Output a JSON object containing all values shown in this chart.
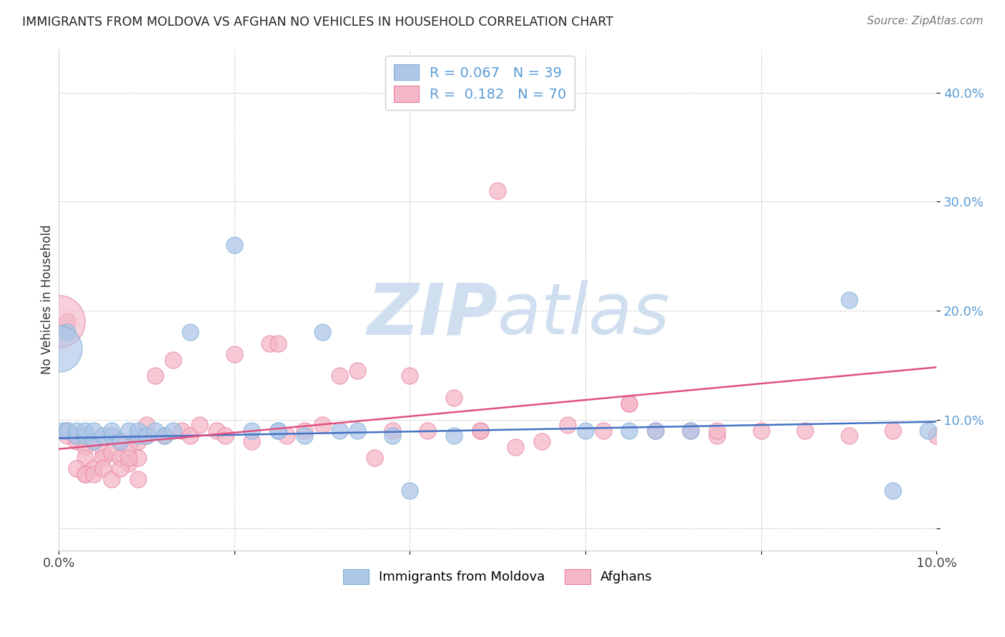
{
  "title": "IMMIGRANTS FROM MOLDOVA VS AFGHAN NO VEHICLES IN HOUSEHOLD CORRELATION CHART",
  "source": "Source: ZipAtlas.com",
  "ylabel": "No Vehicles in Household",
  "xlim": [
    0.0,
    0.1
  ],
  "ylim": [
    -0.02,
    0.44
  ],
  "yticks": [
    0.0,
    0.1,
    0.2,
    0.3,
    0.4
  ],
  "xticks": [
    0.0,
    0.02,
    0.04,
    0.06,
    0.08,
    0.1
  ],
  "ytick_labels": [
    "",
    "10.0%",
    "20.0%",
    "30.0%",
    "40.0%"
  ],
  "xtick_labels": [
    "0.0%",
    "",
    "",
    "",
    "",
    "10.0%"
  ],
  "blue_R": 0.067,
  "blue_N": 39,
  "pink_R": 0.182,
  "pink_N": 70,
  "blue_color": "#aec6e8",
  "pink_color": "#f4b8c8",
  "blue_edge_color": "#7aafd4",
  "pink_edge_color": "#e87fa0",
  "blue_line_color": "#4472c4",
  "pink_line_color": "#e05080",
  "tick_color": "#5b9bd5",
  "watermark_color": "#d0dff0",
  "grid_color": "#d0d0d0",
  "blue_scatter_x": [
    0.0005,
    0.001,
    0.001,
    0.002,
    0.002,
    0.003,
    0.003,
    0.004,
    0.004,
    0.005,
    0.006,
    0.006,
    0.007,
    0.008,
    0.009,
    0.009,
    0.01,
    0.011,
    0.012,
    0.013,
    0.015,
    0.02,
    0.022,
    0.025,
    0.028,
    0.03,
    0.032,
    0.034,
    0.038,
    0.04,
    0.045,
    0.06,
    0.065,
    0.068,
    0.072,
    0.09,
    0.095,
    0.099,
    0.025
  ],
  "blue_scatter_y": [
    0.09,
    0.18,
    0.09,
    0.085,
    0.09,
    0.085,
    0.09,
    0.08,
    0.09,
    0.085,
    0.085,
    0.09,
    0.08,
    0.09,
    0.085,
    0.09,
    0.085,
    0.09,
    0.085,
    0.09,
    0.18,
    0.26,
    0.09,
    0.09,
    0.085,
    0.18,
    0.09,
    0.09,
    0.085,
    0.035,
    0.085,
    0.09,
    0.09,
    0.09,
    0.09,
    0.21,
    0.035,
    0.09,
    0.09
  ],
  "blue_scatter_large_x": [
    0.0
  ],
  "blue_scatter_large_y": [
    0.165
  ],
  "pink_scatter_x": [
    0.001,
    0.001,
    0.002,
    0.002,
    0.003,
    0.003,
    0.003,
    0.004,
    0.004,
    0.005,
    0.005,
    0.006,
    0.006,
    0.007,
    0.007,
    0.008,
    0.008,
    0.009,
    0.009,
    0.01,
    0.01,
    0.011,
    0.012,
    0.013,
    0.014,
    0.015,
    0.016,
    0.018,
    0.019,
    0.02,
    0.022,
    0.024,
    0.025,
    0.026,
    0.028,
    0.03,
    0.032,
    0.034,
    0.036,
    0.038,
    0.04,
    0.042,
    0.045,
    0.048,
    0.05,
    0.052,
    0.055,
    0.058,
    0.062,
    0.065,
    0.068,
    0.072,
    0.075,
    0.08,
    0.085,
    0.09,
    0.095,
    0.1,
    0.001,
    0.002,
    0.003,
    0.004,
    0.005,
    0.006,
    0.007,
    0.008,
    0.009,
    0.048,
    0.065,
    0.075
  ],
  "pink_scatter_y": [
    0.09,
    0.085,
    0.08,
    0.085,
    0.075,
    0.065,
    0.05,
    0.055,
    0.08,
    0.07,
    0.065,
    0.07,
    0.085,
    0.08,
    0.065,
    0.075,
    0.06,
    0.065,
    0.08,
    0.085,
    0.095,
    0.14,
    0.085,
    0.155,
    0.09,
    0.085,
    0.095,
    0.09,
    0.085,
    0.16,
    0.08,
    0.17,
    0.17,
    0.085,
    0.09,
    0.095,
    0.14,
    0.145,
    0.065,
    0.09,
    0.14,
    0.09,
    0.12,
    0.09,
    0.31,
    0.075,
    0.08,
    0.095,
    0.09,
    0.115,
    0.09,
    0.09,
    0.085,
    0.09,
    0.09,
    0.085,
    0.09,
    0.085,
    0.19,
    0.055,
    0.05,
    0.05,
    0.055,
    0.045,
    0.055,
    0.065,
    0.045,
    0.09,
    0.115,
    0.09
  ],
  "pink_scatter_large_x": [
    0.0
  ],
  "pink_scatter_large_y": [
    0.19
  ],
  "blue_line_x0": 0.0,
  "blue_line_x1": 0.1,
  "blue_line_y0": 0.083,
  "blue_line_y1": 0.098,
  "pink_line_x0": 0.0,
  "pink_line_x1": 0.1,
  "pink_line_y0": 0.073,
  "pink_line_y1": 0.148
}
